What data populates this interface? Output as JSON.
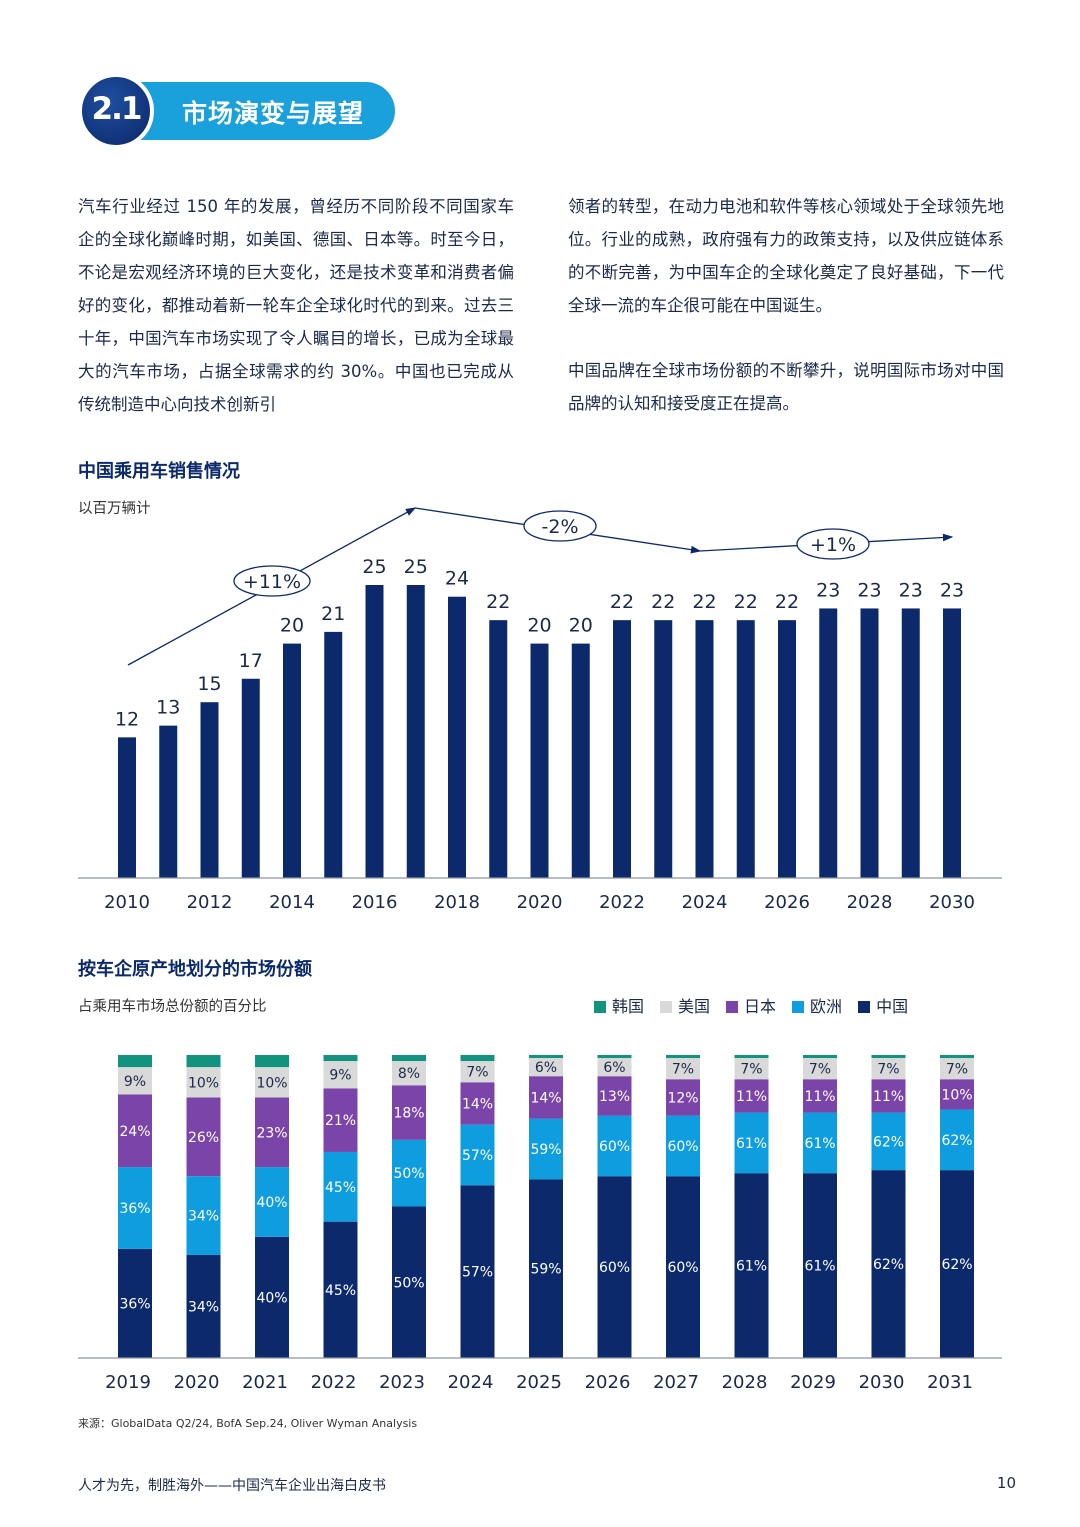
{
  "section": {
    "number": "2.1",
    "title": "市场演变与展望"
  },
  "paragraphs": {
    "left": "汽车行业经过 150 年的发展，曾经历不同阶段不同国家车企的全球化巅峰时期，如美国、德国、日本等。时至今日，不论是宏观经济环境的巨大变化，还是技术变革和消费者偏好的变化，都推动着新一轮车企全球化时代的到来。过去三十年，中国汽车市场实现了令人瞩目的增长，已成为全球最大的汽车市场，占据全球需求的约 30%。中国也已完成从传统制造中心向技术创新引",
    "right1": "领者的转型，在动力电池和软件等核心领域处于全球领先地位。行业的成熟，政府强有力的政策支持，以及供应链体系的不断完善，为中国车企的全球化奠定了良好基础，下一代全球一流的车企很可能在中国诞生。",
    "right2": "中国品牌在全球市场份额的不断攀升，说明国际市场对中国品牌的认知和接受度正在提高。"
  },
  "chart_data": [
    {
      "type": "bar",
      "title": "中国乘用车销售情况",
      "subtitle": "以百万辆计",
      "categories": [
        "2010",
        "2011",
        "2012",
        "2013",
        "2014",
        "2015",
        "2016",
        "2017",
        "2018",
        "2019",
        "2020",
        "2021",
        "2022",
        "2023",
        "2024",
        "2025",
        "2026",
        "2027",
        "2028",
        "2029",
        "2030"
      ],
      "x_tick_labels": [
        "2010",
        "2012",
        "2014",
        "2016",
        "2018",
        "2020",
        "2022",
        "2024",
        "2026",
        "2028",
        "2030"
      ],
      "values": [
        12,
        13,
        15,
        17,
        20,
        21,
        25,
        25,
        24,
        22,
        20,
        20,
        22,
        22,
        22,
        22,
        22,
        23,
        23,
        23,
        23
      ],
      "ylim": [
        0,
        27
      ],
      "color": "#0c2a6b",
      "annotations": [
        {
          "label": "+11%",
          "from": "2010",
          "to": "2017"
        },
        {
          "label": "-2%",
          "from": "2017",
          "to": "2024"
        },
        {
          "label": "+1%",
          "from": "2024",
          "to": "2030"
        }
      ],
      "grid": false
    },
    {
      "type": "bar",
      "stacked": true,
      "title": "按车企原产地划分的市场份额",
      "subtitle": "占乘用车市场总份额的百分比",
      "legend_position": "top-right",
      "categories": [
        "2019",
        "2020",
        "2021",
        "2022",
        "2023",
        "2024",
        "2025",
        "2026",
        "2027",
        "2028",
        "2029",
        "2030",
        "2031"
      ],
      "series": [
        {
          "name": "中国",
          "color": "#0c2a6b",
          "values": [
            36,
            34,
            40,
            45,
            50,
            57,
            59,
            60,
            60,
            61,
            61,
            62,
            62
          ],
          "labels": [
            "36%",
            "34%",
            "40%",
            "45%",
            "50%",
            "57%",
            "59%",
            "60%",
            "60%",
            "61%",
            "61%",
            "62%",
            "62%"
          ]
        },
        {
          "name": "欧洲",
          "color": "#0e9ee0",
          "labels": [
            "36%",
            "34%",
            "40%",
            "45%",
            "50%",
            "57%",
            "59%",
            "60%",
            "60%",
            "61%",
            "61%",
            "62%",
            "62%"
          ]
        },
        {
          "name": "日本",
          "color": "#7b44a8",
          "values": [
            24,
            26,
            23,
            21,
            18,
            14,
            14,
            13,
            12,
            11,
            11,
            11,
            10
          ],
          "labels": [
            "24%",
            "26%",
            "23%",
            "21%",
            "18%",
            "14%",
            "14%",
            "13%",
            "12%",
            "11%",
            "11%",
            "11%",
            "10%"
          ]
        },
        {
          "name": "美国",
          "color": "#d9d9d9",
          "values": [
            9,
            10,
            10,
            9,
            8,
            7,
            6,
            6,
            7,
            7,
            7,
            7,
            7
          ],
          "labels": [
            "9%",
            "10%",
            "10%",
            "9%",
            "8%",
            "7%",
            "6%",
            "6%",
            "7%",
            "7%",
            "7%",
            "7%",
            "7%"
          ]
        },
        {
          "name": "韩国",
          "color": "#12937f",
          "values": [
            4,
            4,
            4,
            2,
            2,
            2,
            1,
            1,
            1,
            1,
            1,
            1,
            1
          ]
        }
      ],
      "ylim": [
        0,
        100
      ],
      "grid": false
    }
  ],
  "legend_order": [
    "韩国",
    "美国",
    "日本",
    "欧洲",
    "中国"
  ],
  "source": "来源：GlobalData Q2/24, BofA Sep.24, Oliver Wyman Analysis",
  "footer": {
    "text": "人才为先，制胜海外——中国汽车企业出海白皮书",
    "page": "10"
  }
}
